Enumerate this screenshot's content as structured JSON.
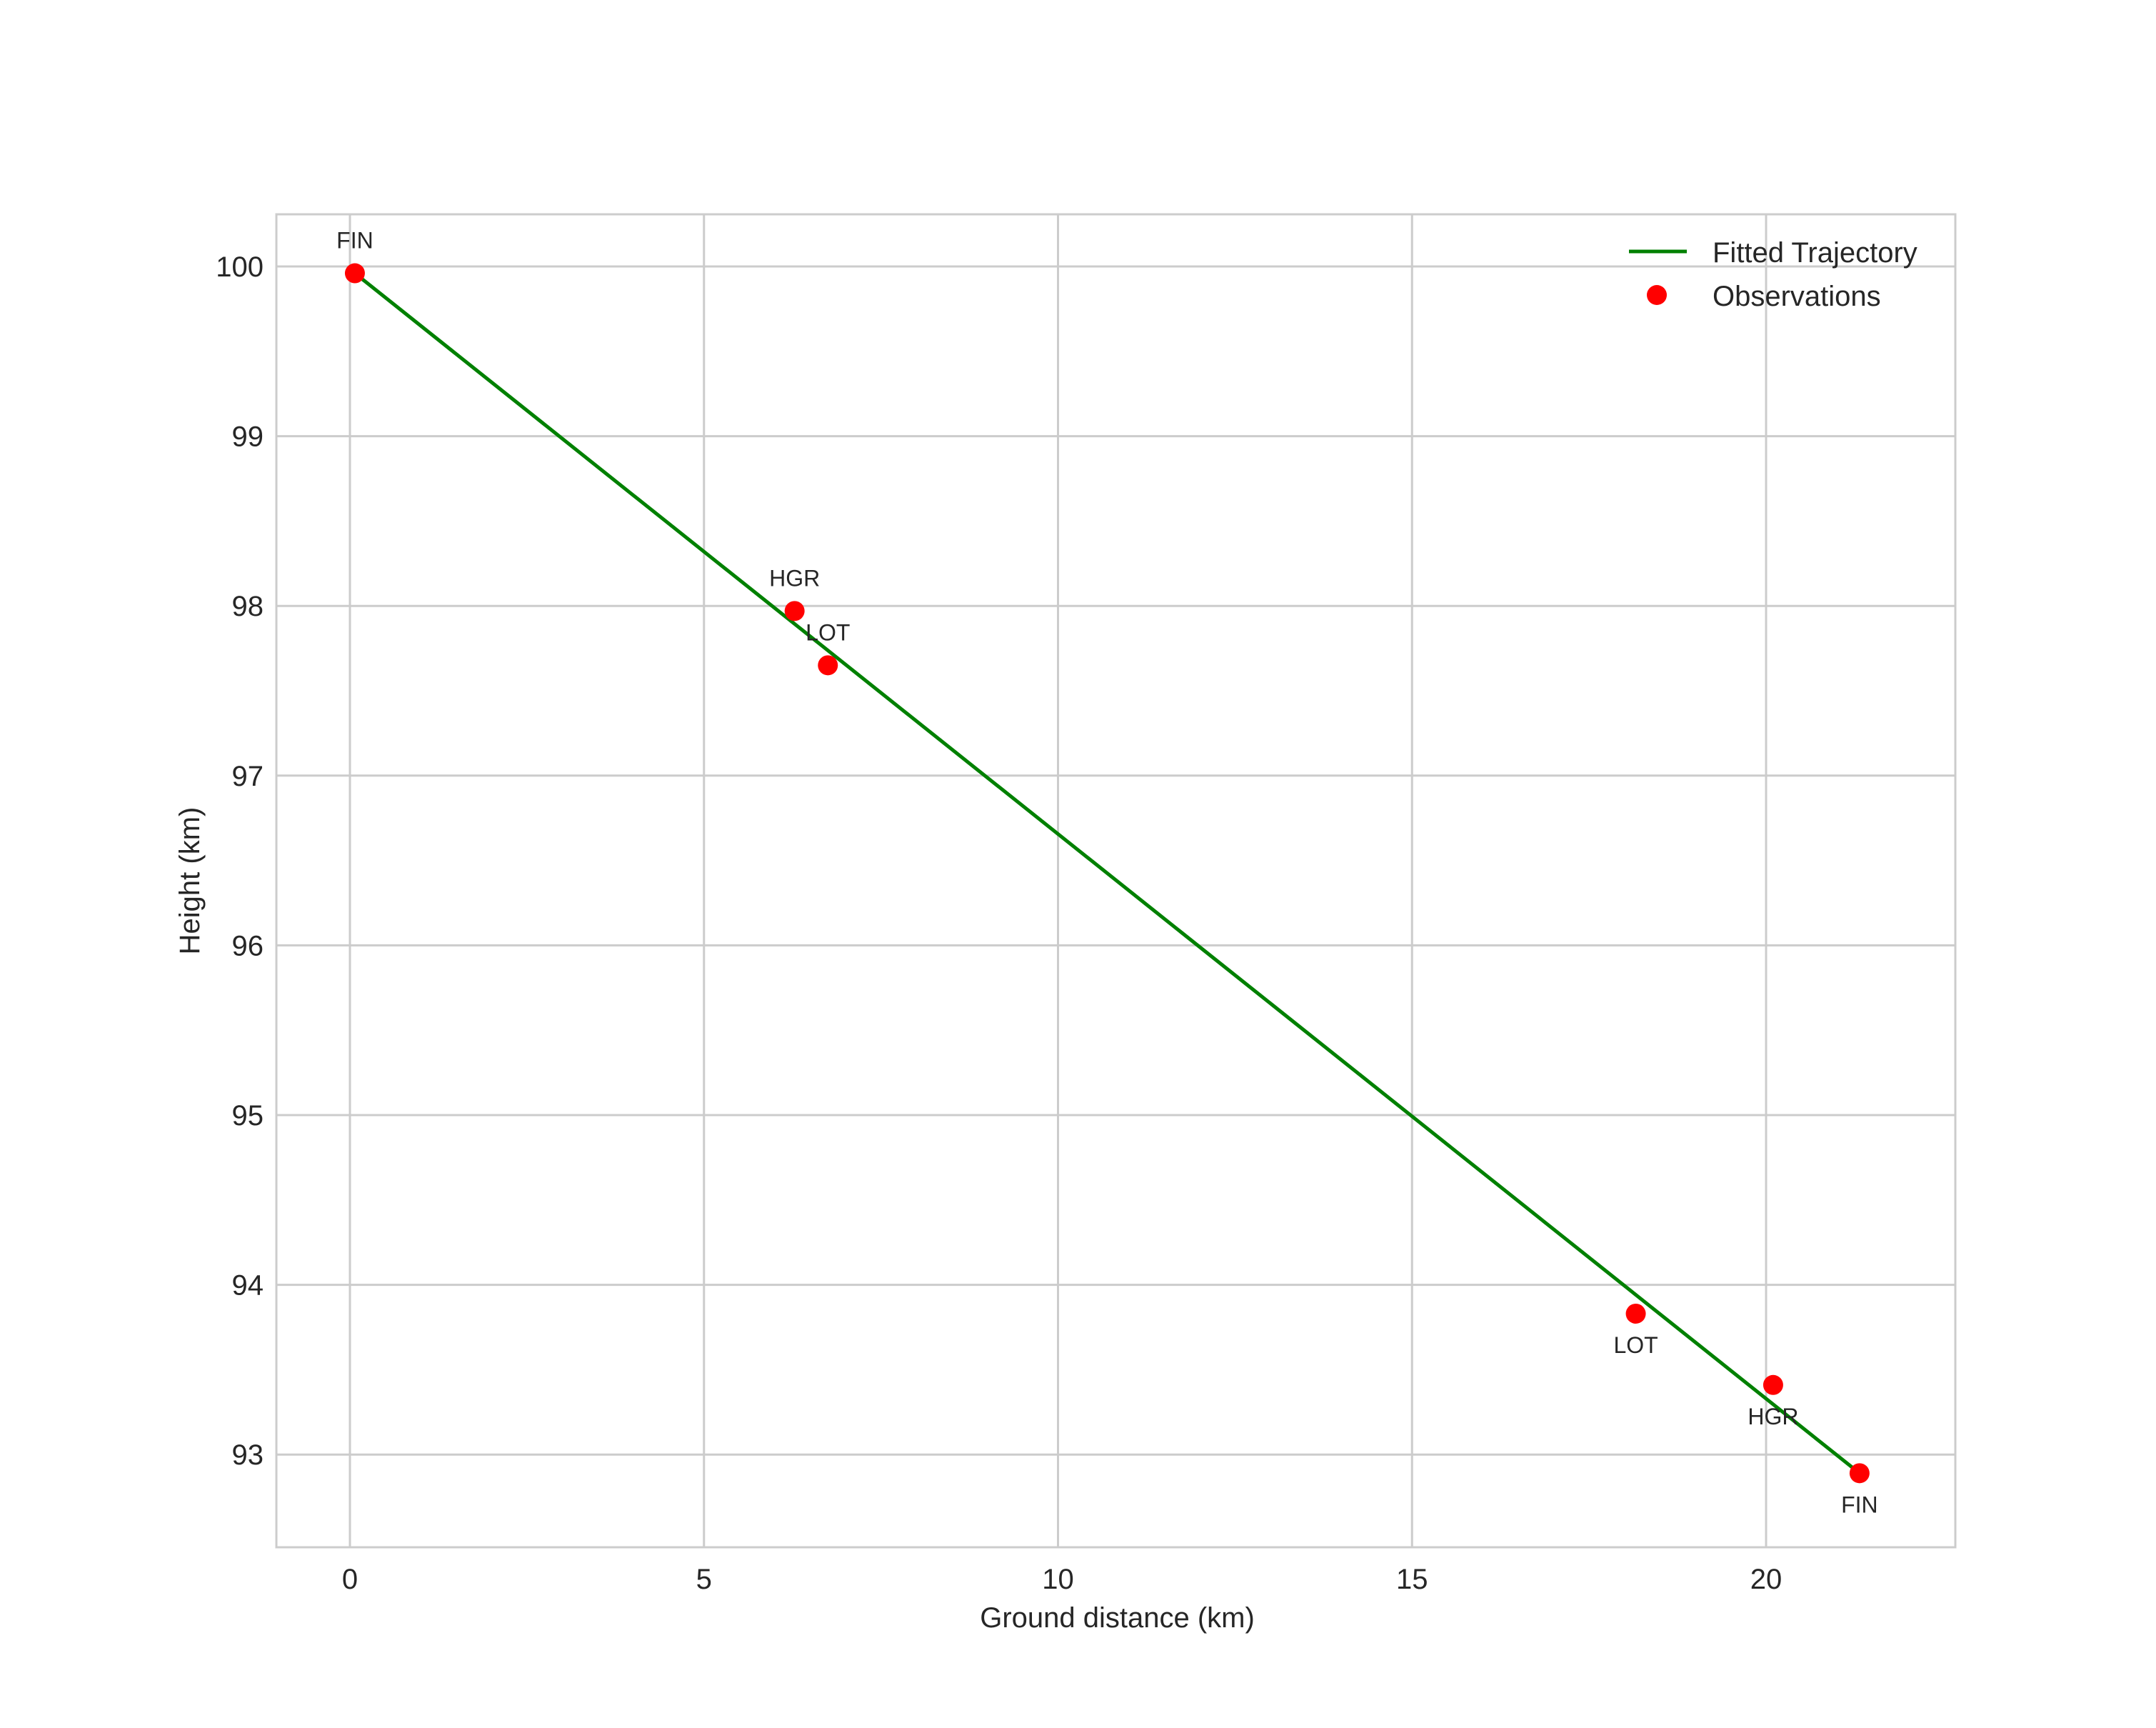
{
  "chart_data": {
    "type": "line+scatter",
    "title": "",
    "xlabel": "Ground distance (km)",
    "ylabel": "Height (km)",
    "xlim": [
      -1.07,
      22.4
    ],
    "ylim": [
      92.55,
      100.31
    ],
    "xticks": [
      0,
      5,
      10,
      15,
      20
    ],
    "yticks": [
      93,
      94,
      95,
      96,
      97,
      98,
      99,
      100
    ],
    "grid": true,
    "legend_position": "upper right",
    "series": [
      {
        "name": "Fitted Trajectory",
        "type": "line",
        "color": "#008000",
        "x": [
          0.07,
          21.32
        ],
        "y": [
          99.96,
          92.89
        ]
      },
      {
        "name": "Observations",
        "type": "scatter",
        "color": "#ff0000",
        "points": [
          {
            "label": "FIN",
            "x": 0.07,
            "y": 99.96,
            "label_pos": "above"
          },
          {
            "label": "HGR",
            "x": 6.28,
            "y": 97.97,
            "label_pos": "above"
          },
          {
            "label": "LOT",
            "x": 6.75,
            "y": 97.65,
            "label_pos": "above"
          },
          {
            "label": "LOT",
            "x": 18.16,
            "y": 93.83,
            "label_pos": "below"
          },
          {
            "label": "HGR",
            "x": 20.1,
            "y": 93.41,
            "label_pos": "below"
          },
          {
            "label": "FIN",
            "x": 21.32,
            "y": 92.89,
            "label_pos": "below"
          }
        ]
      }
    ]
  },
  "legend": {
    "items": [
      {
        "label": "Fitted Trajectory",
        "marker": "line",
        "color": "#008000"
      },
      {
        "label": "Observations",
        "marker": "dot",
        "color": "#ff0000"
      }
    ]
  },
  "colors": {
    "grid": "#cccccc",
    "text": "#262626",
    "background": "#ffffff"
  }
}
